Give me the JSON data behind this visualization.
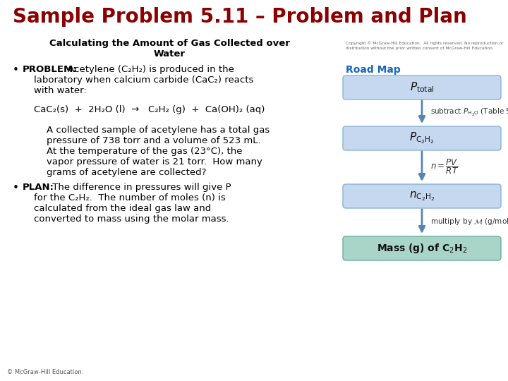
{
  "title": "Sample Problem 5.11 – Problem and Plan",
  "title_color": "#8B0000",
  "background_color": "#FFFFFF",
  "subtitle_line1": "Calculating the Amount of Gas Collected over",
  "subtitle_line2": "Water",
  "copyright_text": "Copyright © McGraw-Hill Education.  All rights reserved. No reproduction or\ndistribution without the prior written consent of McGraw-Hill Education.",
  "road_map_label": "Road Map",
  "road_map_color": "#1565C0",
  "box_light_color": "#C5D8F0",
  "box_border_color": "#8AB4D4",
  "box_teal_color": "#A8D5C8",
  "box_teal_border": "#6AAFA0",
  "arrow_color": "#5585B5",
  "text_color": "#222222",
  "footer": "© McGraw-Hill Education."
}
